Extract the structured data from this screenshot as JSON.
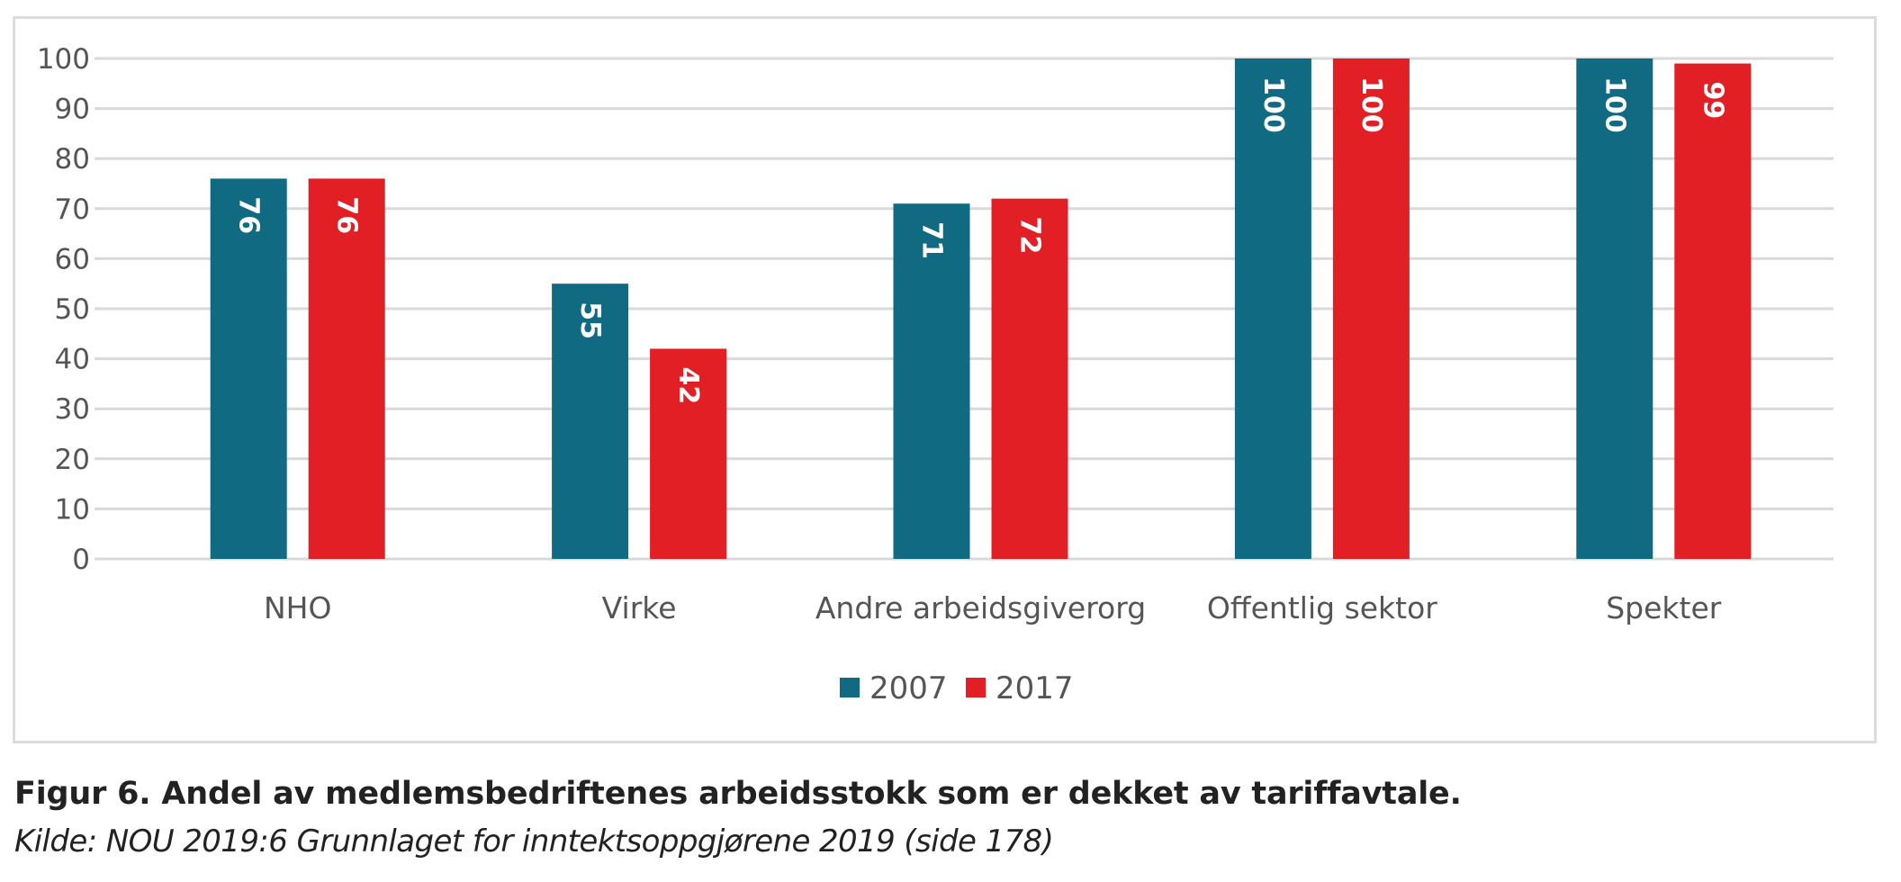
{
  "chart_data": {
    "type": "bar",
    "title": "",
    "xlabel": "",
    "ylabel": "",
    "ylim": [
      0,
      100
    ],
    "yticks": [
      0,
      10,
      20,
      30,
      40,
      50,
      60,
      70,
      80,
      90,
      100
    ],
    "grid": true,
    "legend_position": "bottom-center",
    "categories": [
      "NHO",
      "Virke",
      "Andre arbeidsgiverorg",
      "Offentlig sektor",
      "Spekter"
    ],
    "series": [
      {
        "name": "2007",
        "color": "#106A82",
        "values": [
          76,
          55,
          71,
          100,
          100
        ]
      },
      {
        "name": "2017",
        "color": "#E31F26",
        "values": [
          76,
          42,
          72,
          100,
          99
        ]
      }
    ],
    "data_labels": true
  },
  "caption": {
    "title": "Figur 6. Andel av medlemsbedriftenes arbeidsstokk som er dekket av tariffavtale.",
    "source": "Kilde: NOU 2019:6 Grunnlaget for inntektsoppgjørene 2019 (side 178)"
  }
}
